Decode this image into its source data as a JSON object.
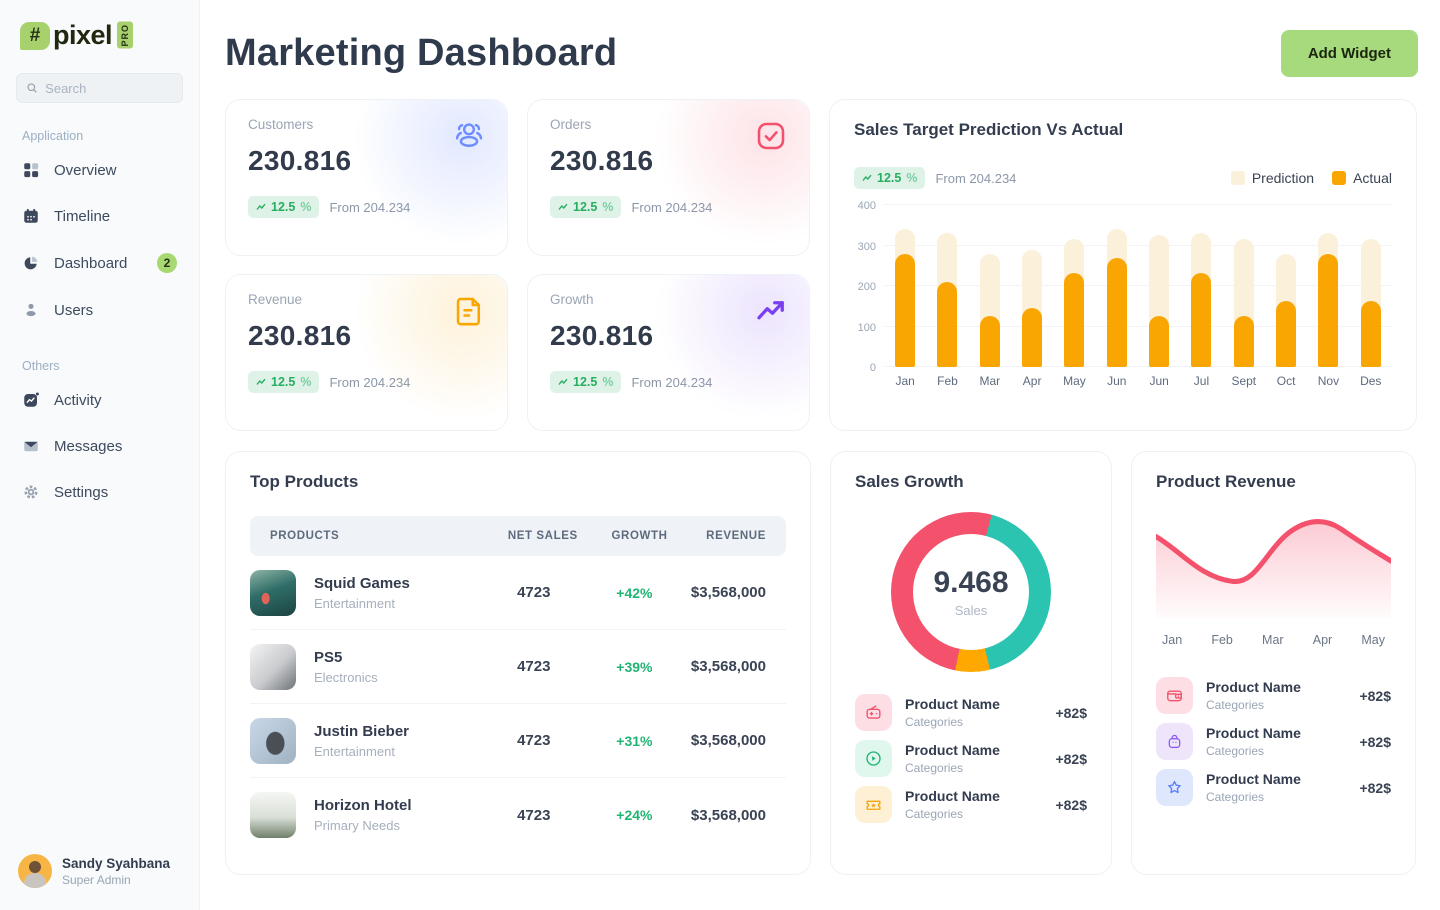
{
  "sidebar": {
    "logo": {
      "hash": "#",
      "name": "pixel",
      "badge": "PRO"
    },
    "search": {
      "placeholder": "Search"
    },
    "section_application": "Application",
    "section_others": "Others",
    "items": [
      {
        "label": "Overview"
      },
      {
        "label": "Timeline"
      },
      {
        "label": "Dashboard",
        "badge": "2"
      },
      {
        "label": "Users"
      },
      {
        "label": "Activity"
      },
      {
        "label": "Messages"
      },
      {
        "label": "Settings"
      }
    ],
    "user": {
      "name": "Sandy Syahbana",
      "role": "Super Admin"
    }
  },
  "header": {
    "title": "Marketing Dashboard",
    "add_widget": "Add Widget"
  },
  "stats": [
    {
      "label": "Customers",
      "value": "230.816",
      "change": "12.5",
      "change_pct": "%",
      "from": "From 204.234",
      "accent": "#6C8CFF"
    },
    {
      "label": "Orders",
      "value": "230.816",
      "change": "12.5",
      "change_pct": "%",
      "from": "From 204.234",
      "accent": "#F4516C"
    },
    {
      "label": "Revenue",
      "value": "230.816",
      "change": "12.5",
      "change_pct": "%",
      "from": "From 204.234",
      "accent": "#F9A602"
    },
    {
      "label": "Growth",
      "value": "230.816",
      "change": "12.5",
      "change_pct": "%",
      "from": "From 204.234",
      "accent": "#7B3FF2"
    }
  ],
  "sales_chart": {
    "title": "Sales Target Prediction Vs Actual",
    "change": "12.5",
    "change_pct": "%",
    "from": "From 204.234",
    "chart_data": {
      "type": "bar",
      "categories": [
        "Jan",
        "Feb",
        "Mar",
        "Apr",
        "May",
        "Jun",
        "Jun",
        "Jul",
        "Sept",
        "Oct",
        "Nov",
        "Des"
      ],
      "series": [
        {
          "name": "Prediction",
          "color": "#FBF0DA",
          "values": [
            340,
            332,
            278,
            288,
            315,
            340,
            325,
            332,
            315,
            278,
            332,
            315
          ]
        },
        {
          "name": "Actual",
          "color": "#F9A602",
          "values": [
            280,
            210,
            125,
            145,
            232,
            268,
            125,
            232,
            125,
            162,
            280,
            162
          ]
        }
      ],
      "ylim": [
        0,
        400
      ],
      "yticks": [
        0,
        100,
        200,
        300,
        400
      ],
      "grid": true,
      "legend_position": "top-right"
    }
  },
  "top_products": {
    "title": "Top Products",
    "columns": [
      "PRODUCTS",
      "NET SALES",
      "GROWTH",
      "REVENUE"
    ],
    "rows": [
      {
        "name": "Squid Games",
        "category": "Entertainment",
        "net_sales": "4723",
        "growth": "+42%",
        "revenue": "$3,568,000"
      },
      {
        "name": "PS5",
        "category": "Electronics",
        "net_sales": "4723",
        "growth": "+39%",
        "revenue": "$3,568,000"
      },
      {
        "name": "Justin Bieber",
        "category": "Entertainment",
        "net_sales": "4723",
        "growth": "+31%",
        "revenue": "$3,568,000"
      },
      {
        "name": "Horizon Hotel",
        "category": "Primary Needs",
        "net_sales": "4723",
        "growth": "+24%",
        "revenue": "$3,568,000"
      }
    ]
  },
  "sales_growth": {
    "title": "Sales Growth",
    "chart_data": {
      "type": "pie",
      "center_value": "9.468",
      "center_label": "Sales",
      "start_angle_deg": 15,
      "segments": [
        {
          "name": "teal-segment",
          "color": "#2AC4B0",
          "pct": 42
        },
        {
          "name": "orange-segment",
          "color": "#FFA800",
          "pct": 7
        },
        {
          "name": "red-segment",
          "color": "#F4516C",
          "pct": 51
        }
      ]
    },
    "items": [
      {
        "name": "Product Name",
        "category": "Categories",
        "amount": "+82$"
      },
      {
        "name": "Product Name",
        "category": "Categories",
        "amount": "+82$"
      },
      {
        "name": "Product Name",
        "category": "Categories",
        "amount": "+82$"
      }
    ]
  },
  "product_revenue": {
    "title": "Product Revenue",
    "chart_data": {
      "type": "area",
      "x": [
        "Jan",
        "Feb",
        "Mar",
        "Apr",
        "May"
      ],
      "values": [
        70,
        48,
        42,
        95,
        55
      ],
      "color": "#F4516C"
    },
    "items": [
      {
        "name": "Product Name",
        "category": "Categories",
        "amount": "+82$"
      },
      {
        "name": "Product Name",
        "category": "Categories",
        "amount": "+82$"
      },
      {
        "name": "Product Name",
        "category": "Categories",
        "amount": "+82$"
      }
    ]
  },
  "colors": {
    "add_widget_bg": "#A7DA7C",
    "positive_green": "#27AE60",
    "actual_orange": "#F9A602",
    "prediction_cream": "#FBF0DA",
    "brand_green": "#A6D16D",
    "red": "#F4516C",
    "teal": "#2AC4B0",
    "purple": "#7B3FF2",
    "blue": "#6C8CFF"
  }
}
